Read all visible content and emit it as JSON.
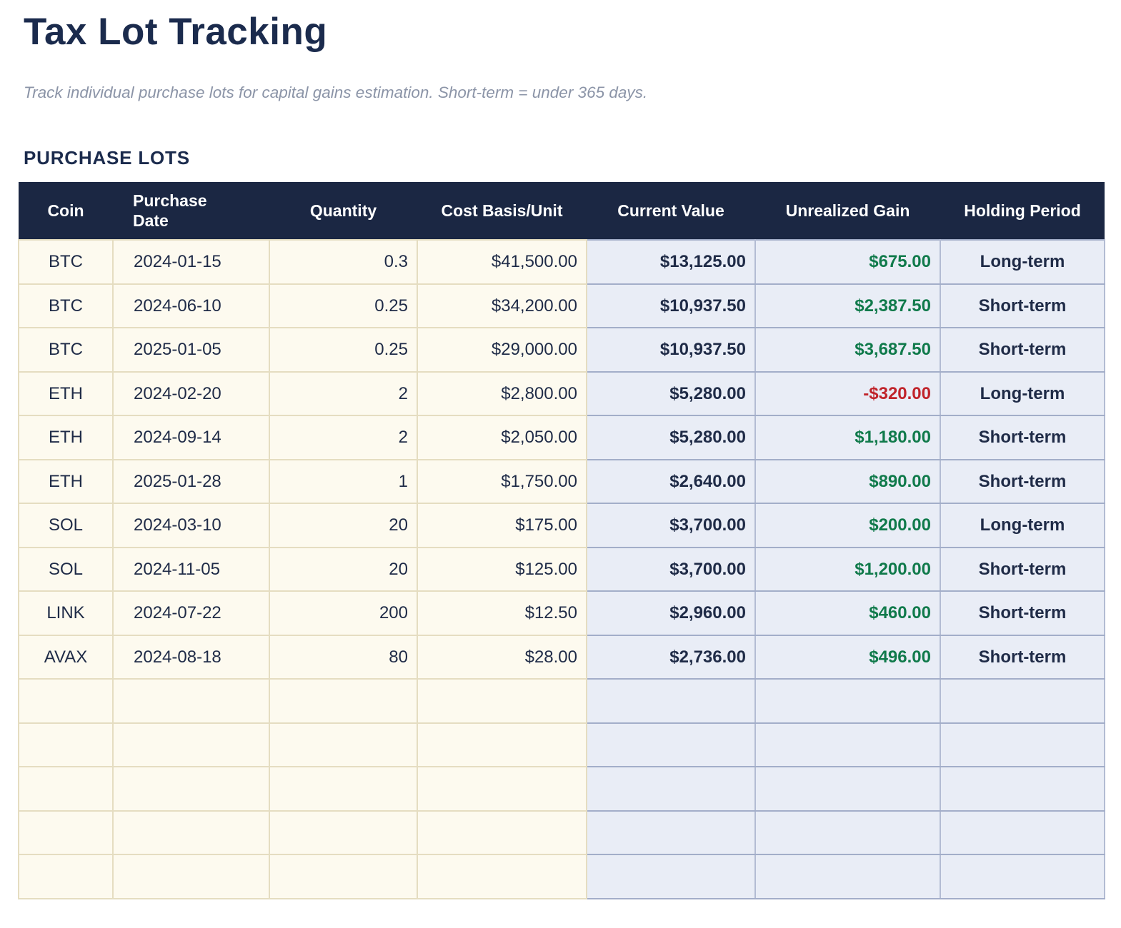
{
  "page": {
    "title": "Tax Lot Tracking",
    "subtitle": "Track individual purchase lots for capital gains estimation. Short-term = under 365 days.",
    "section_heading": "PURCHASE LOTS"
  },
  "colors": {
    "header_bg": "#1b2743",
    "navy_text": "#1f2b47",
    "cream_bg": "#fdfaef",
    "blue_bg": "#e9edf6",
    "gain_green": "#107a4b",
    "loss_red": "#c0232a",
    "subtitle_gray": "#8b94a7"
  },
  "table": {
    "columns": [
      {
        "key": "coin",
        "label": "Coin"
      },
      {
        "key": "purchase_date",
        "label": "Purchase Date"
      },
      {
        "key": "quantity",
        "label": "Quantity"
      },
      {
        "key": "cost_basis",
        "label": "Cost Basis/Unit"
      },
      {
        "key": "current_value",
        "label": "Current Value"
      },
      {
        "key": "unrealized_gain",
        "label": "Unrealized Gain"
      },
      {
        "key": "holding_period",
        "label": "Holding Period"
      }
    ],
    "rows": [
      {
        "coin": "BTC",
        "purchase_date": "2024-01-15",
        "quantity": "0.3",
        "cost_basis": "$41,500.00",
        "current_value": "$13,125.00",
        "unrealized_gain": "$675.00",
        "gain_sign": "positive",
        "holding_period": "Long-term"
      },
      {
        "coin": "BTC",
        "purchase_date": "2024-06-10",
        "quantity": "0.25",
        "cost_basis": "$34,200.00",
        "current_value": "$10,937.50",
        "unrealized_gain": "$2,387.50",
        "gain_sign": "positive",
        "holding_period": "Short-term"
      },
      {
        "coin": "BTC",
        "purchase_date": "2025-01-05",
        "quantity": "0.25",
        "cost_basis": "$29,000.00",
        "current_value": "$10,937.50",
        "unrealized_gain": "$3,687.50",
        "gain_sign": "positive",
        "holding_period": "Short-term"
      },
      {
        "coin": "ETH",
        "purchase_date": "2024-02-20",
        "quantity": "2",
        "cost_basis": "$2,800.00",
        "current_value": "$5,280.00",
        "unrealized_gain": "-$320.00",
        "gain_sign": "negative",
        "holding_period": "Long-term"
      },
      {
        "coin": "ETH",
        "purchase_date": "2024-09-14",
        "quantity": "2",
        "cost_basis": "$2,050.00",
        "current_value": "$5,280.00",
        "unrealized_gain": "$1,180.00",
        "gain_sign": "positive",
        "holding_period": "Short-term"
      },
      {
        "coin": "ETH",
        "purchase_date": "2025-01-28",
        "quantity": "1",
        "cost_basis": "$1,750.00",
        "current_value": "$2,640.00",
        "unrealized_gain": "$890.00",
        "gain_sign": "positive",
        "holding_period": "Short-term"
      },
      {
        "coin": "SOL",
        "purchase_date": "2024-03-10",
        "quantity": "20",
        "cost_basis": "$175.00",
        "current_value": "$3,700.00",
        "unrealized_gain": "$200.00",
        "gain_sign": "positive",
        "holding_period": "Long-term"
      },
      {
        "coin": "SOL",
        "purchase_date": "2024-11-05",
        "quantity": "20",
        "cost_basis": "$125.00",
        "current_value": "$3,700.00",
        "unrealized_gain": "$1,200.00",
        "gain_sign": "positive",
        "holding_period": "Short-term"
      },
      {
        "coin": "LINK",
        "purchase_date": "2024-07-22",
        "quantity": "200",
        "cost_basis": "$12.50",
        "current_value": "$2,960.00",
        "unrealized_gain": "$460.00",
        "gain_sign": "positive",
        "holding_period": "Short-term"
      },
      {
        "coin": "AVAX",
        "purchase_date": "2024-08-18",
        "quantity": "80",
        "cost_basis": "$28.00",
        "current_value": "$2,736.00",
        "unrealized_gain": "$496.00",
        "gain_sign": "positive",
        "holding_period": "Short-term"
      }
    ],
    "empty_row_count": 5
  }
}
